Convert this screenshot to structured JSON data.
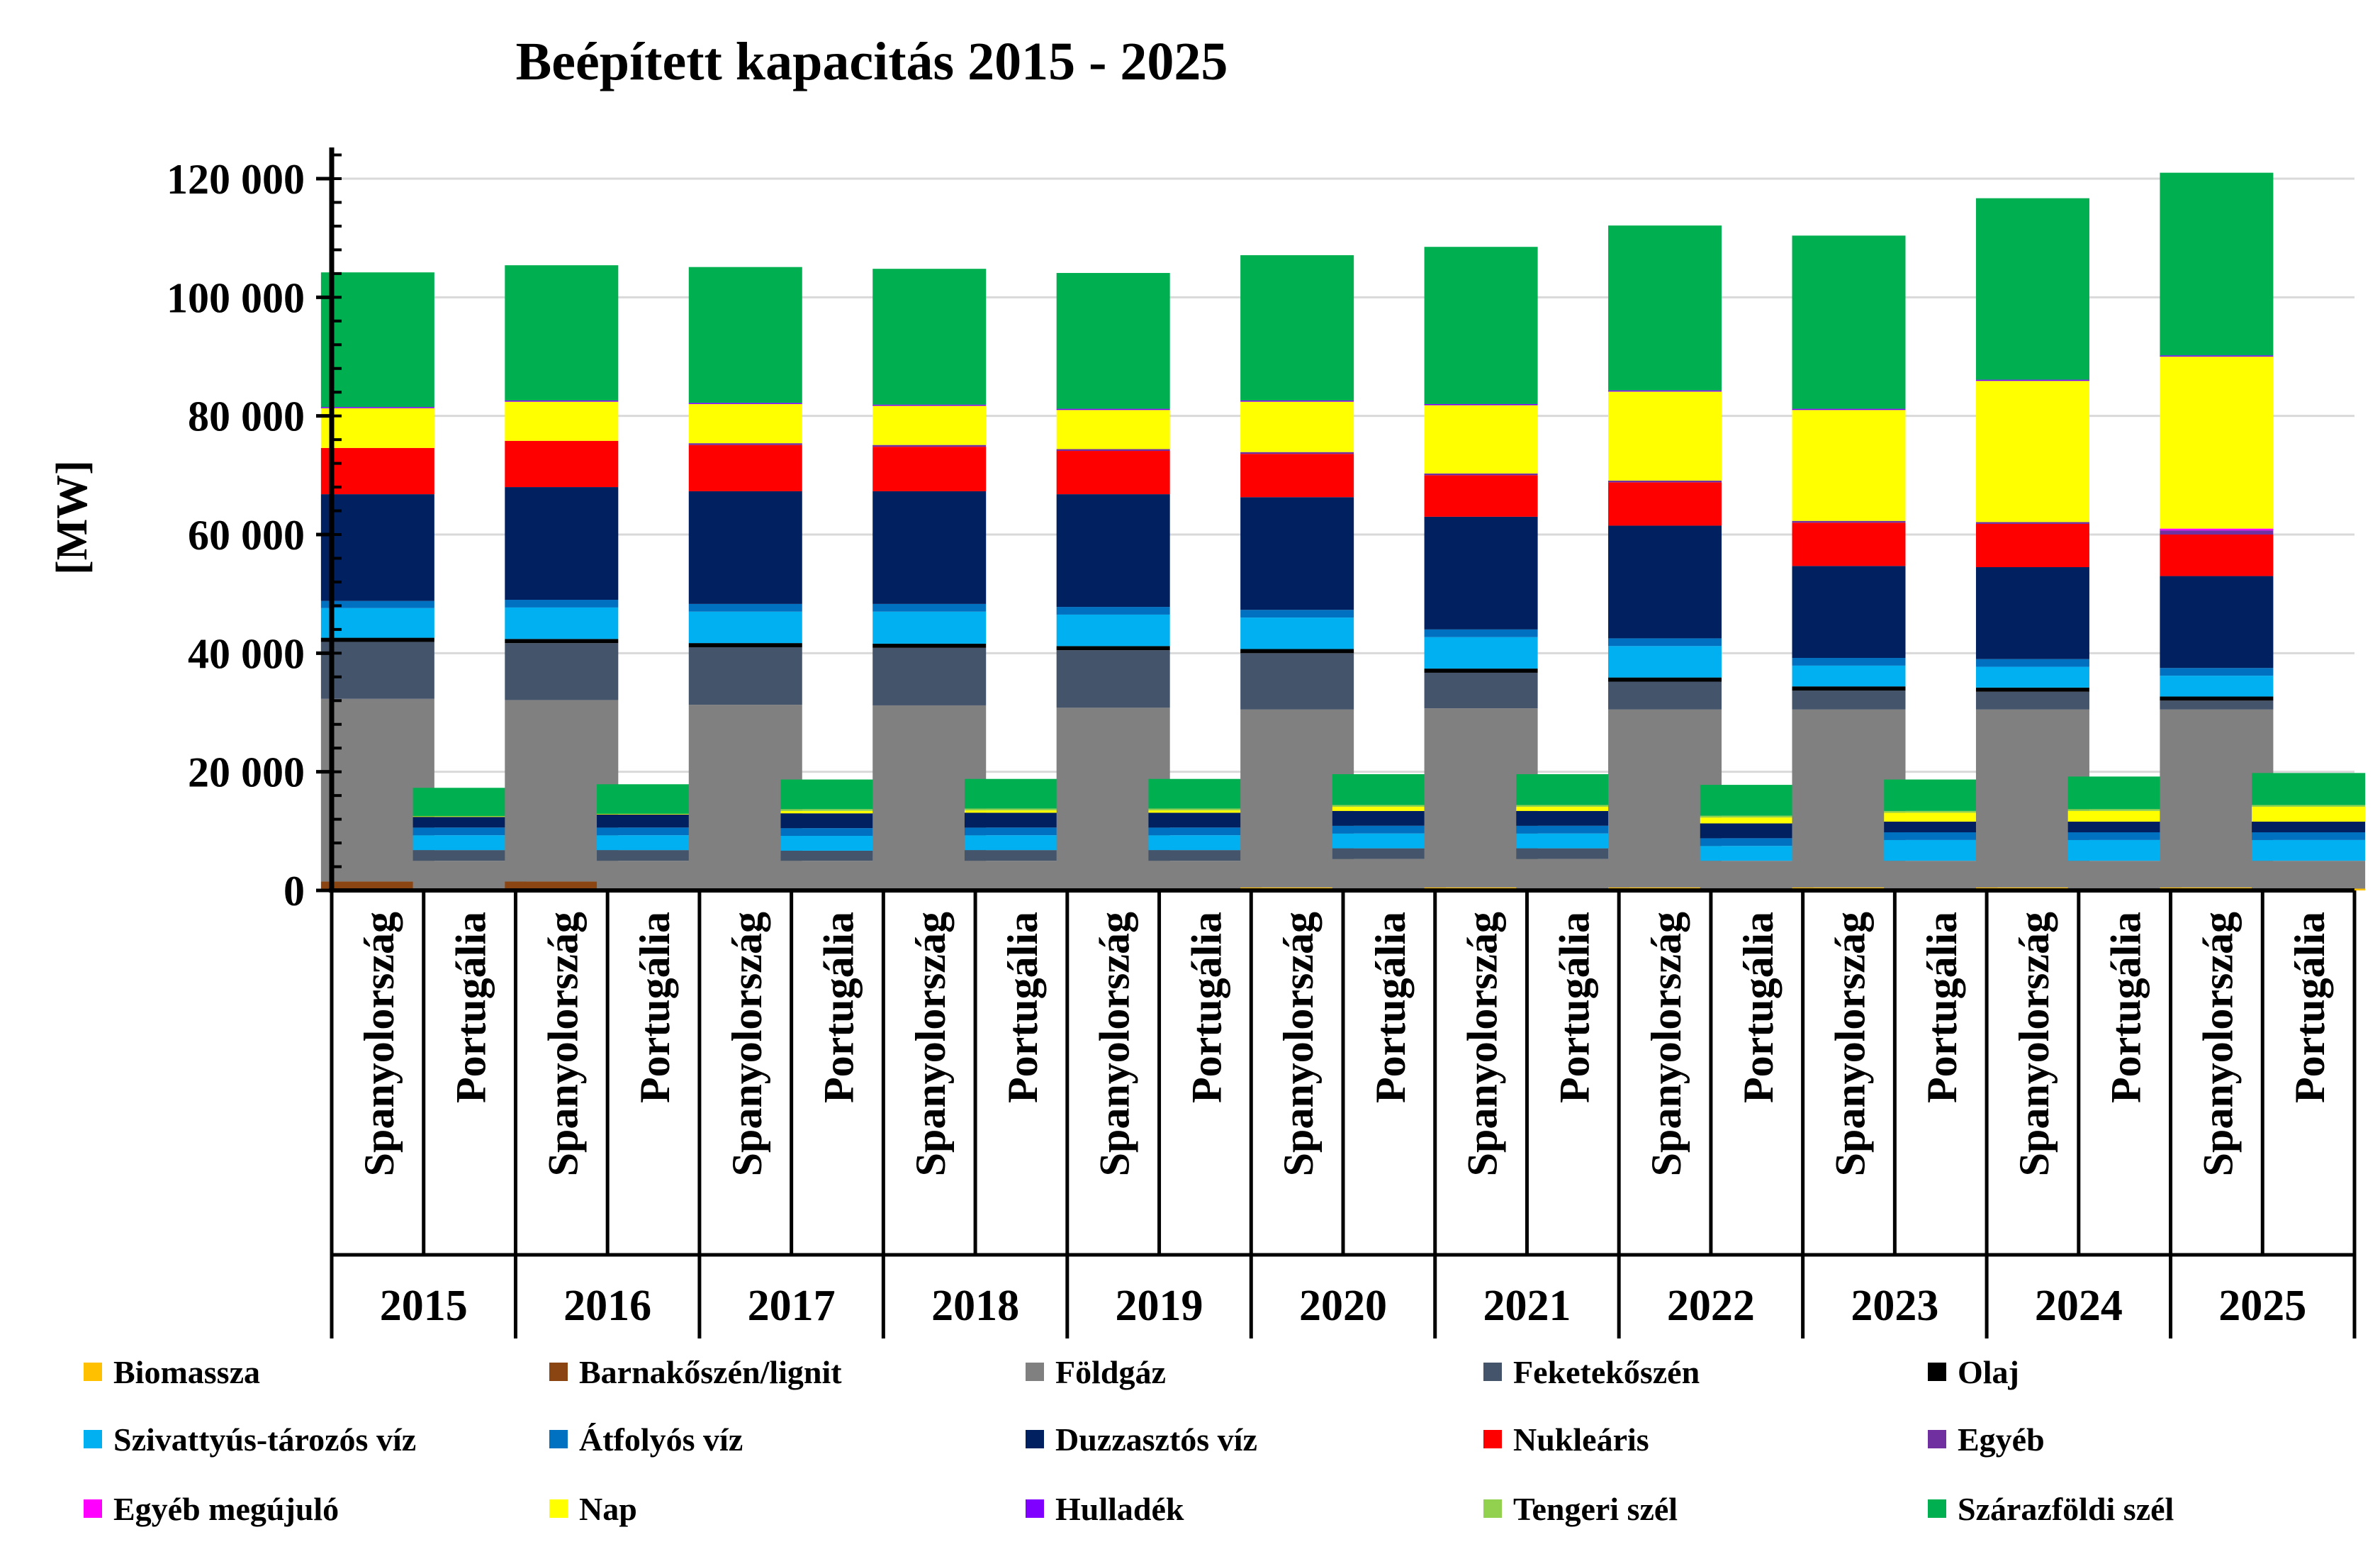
{
  "chart_data": {
    "type": "stacked-bar",
    "title": "Beépített kapacitás 2015 - 2025",
    "ylabel": "[MW]",
    "ylim": [
      0,
      120000
    ],
    "yticks": [
      0,
      20000,
      40000,
      60000,
      80000,
      100000,
      120000
    ],
    "ytick_labels": [
      "0",
      "20 000",
      "40 000",
      "60 000",
      "80 000",
      "100 000",
      "120 000"
    ],
    "grid": true,
    "legend_position": "bottom",
    "years": [
      "2015",
      "2016",
      "2017",
      "2018",
      "2019",
      "2020",
      "2021",
      "2022",
      "2023",
      "2024",
      "2025"
    ],
    "countries": [
      "Spanyolország",
      "Portugália"
    ],
    "series": [
      {
        "name": "Biomassza",
        "color": "#FFC000",
        "values": [
          [
            0,
            0
          ],
          [
            0,
            0
          ],
          [
            0,
            0
          ],
          [
            0,
            0
          ],
          [
            0,
            0
          ],
          [
            500,
            300
          ],
          [
            500,
            300
          ],
          [
            500,
            300
          ],
          [
            500,
            300
          ],
          [
            500,
            300
          ],
          [
            500,
            300
          ]
        ]
      },
      {
        "name": "Barnakőszén/lignit",
        "color": "#8B4513",
        "values": [
          [
            1500,
            0
          ],
          [
            1500,
            0
          ],
          [
            0,
            0
          ],
          [
            0,
            0
          ],
          [
            0,
            0
          ],
          [
            0,
            0
          ],
          [
            0,
            0
          ],
          [
            0,
            0
          ],
          [
            0,
            0
          ],
          [
            0,
            0
          ],
          [
            0,
            0
          ]
        ]
      },
      {
        "name": "Földgáz",
        "color": "#808080",
        "values": [
          [
            30800,
            5000
          ],
          [
            30600,
            5000
          ],
          [
            31300,
            5000
          ],
          [
            31200,
            5000
          ],
          [
            30800,
            5000
          ],
          [
            30000,
            5000
          ],
          [
            30200,
            5000
          ],
          [
            30000,
            4700
          ],
          [
            30000,
            4700
          ],
          [
            30000,
            4700
          ],
          [
            30000,
            4700
          ]
        ]
      },
      {
        "name": "Feketekőszén",
        "color": "#44546A",
        "values": [
          [
            9600,
            1800
          ],
          [
            9600,
            1800
          ],
          [
            9700,
            1700
          ],
          [
            9700,
            1800
          ],
          [
            9700,
            1800
          ],
          [
            9500,
            1800
          ],
          [
            6000,
            1800
          ],
          [
            4700,
            0
          ],
          [
            3200,
            0
          ],
          [
            3000,
            0
          ],
          [
            1500,
            0
          ]
        ]
      },
      {
        "name": "Olaj",
        "color": "#000000",
        "values": [
          [
            700,
            0
          ],
          [
            700,
            0
          ],
          [
            700,
            0
          ],
          [
            700,
            0
          ],
          [
            700,
            0
          ],
          [
            700,
            0
          ],
          [
            700,
            0
          ],
          [
            700,
            0
          ],
          [
            700,
            0
          ],
          [
            700,
            0
          ],
          [
            700,
            0
          ]
        ]
      },
      {
        "name": "Szivattyús-tározós víz",
        "color": "#00B0F0",
        "values": [
          [
            5000,
            2500
          ],
          [
            5300,
            2500
          ],
          [
            5300,
            2500
          ],
          [
            5400,
            2500
          ],
          [
            5300,
            2500
          ],
          [
            5300,
            2500
          ],
          [
            5300,
            2500
          ],
          [
            5300,
            2500
          ],
          [
            3500,
            3500
          ],
          [
            3500,
            3500
          ],
          [
            3500,
            3500
          ]
        ]
      },
      {
        "name": "Átfolyós víz",
        "color": "#0070C0",
        "values": [
          [
            1200,
            1300
          ],
          [
            1300,
            1300
          ],
          [
            1300,
            1300
          ],
          [
            1300,
            1300
          ],
          [
            1300,
            1300
          ],
          [
            1300,
            1300
          ],
          [
            1300,
            1300
          ],
          [
            1300,
            1300
          ],
          [
            1300,
            1300
          ],
          [
            1300,
            1300
          ],
          [
            1300,
            1300
          ]
        ]
      },
      {
        "name": "Duzzasztós víz",
        "color": "#002060",
        "values": [
          [
            18000,
            1800
          ],
          [
            19000,
            2200
          ],
          [
            19000,
            2500
          ],
          [
            19000,
            2500
          ],
          [
            19000,
            2500
          ],
          [
            19000,
            2500
          ],
          [
            19000,
            2500
          ],
          [
            19000,
            2500
          ],
          [
            15500,
            1800
          ],
          [
            15500,
            1800
          ],
          [
            15500,
            1800
          ]
        ]
      },
      {
        "name": "Nukleáris",
        "color": "#FF0000",
        "values": [
          [
            7800,
            0
          ],
          [
            7800,
            0
          ],
          [
            7800,
            0
          ],
          [
            7500,
            0
          ],
          [
            7300,
            0
          ],
          [
            7300,
            0
          ],
          [
            7000,
            0
          ],
          [
            7300,
            0
          ],
          [
            7300,
            0
          ],
          [
            7300,
            0
          ],
          [
            7000,
            0
          ]
        ]
      },
      {
        "name": "Egyéb",
        "color": "#7030A0",
        "values": [
          [
            0,
            0
          ],
          [
            0,
            0
          ],
          [
            300,
            0
          ],
          [
            300,
            0
          ],
          [
            300,
            0
          ],
          [
            300,
            0
          ],
          [
            300,
            0
          ],
          [
            300,
            0
          ],
          [
            300,
            0
          ],
          [
            300,
            0
          ],
          [
            700,
            0
          ]
        ]
      },
      {
        "name": "Egyéb megújuló",
        "color": "#FF00FF",
        "values": [
          [
            0,
            0
          ],
          [
            0,
            0
          ],
          [
            0,
            0
          ],
          [
            0,
            0
          ],
          [
            0,
            0
          ],
          [
            0,
            0
          ],
          [
            0,
            0
          ],
          [
            0,
            0
          ],
          [
            0,
            0
          ],
          [
            0,
            0
          ],
          [
            300,
            0
          ]
        ]
      },
      {
        "name": "Nap",
        "color": "#FFFF00",
        "values": [
          [
            6700,
            100
          ],
          [
            6600,
            100
          ],
          [
            6600,
            400
          ],
          [
            6600,
            400
          ],
          [
            6600,
            400
          ],
          [
            8500,
            700
          ],
          [
            11500,
            700
          ],
          [
            15000,
            1000
          ],
          [
            18700,
            1500
          ],
          [
            23800,
            1800
          ],
          [
            29000,
            2500
          ]
        ]
      },
      {
        "name": "Hulladék",
        "color": "#7F00FF",
        "values": [
          [
            200,
            0
          ],
          [
            200,
            0
          ],
          [
            200,
            0
          ],
          [
            200,
            0
          ],
          [
            200,
            0
          ],
          [
            200,
            0
          ],
          [
            200,
            0
          ],
          [
            200,
            0
          ],
          [
            200,
            0
          ],
          [
            200,
            0
          ],
          [
            200,
            0
          ]
        ]
      },
      {
        "name": "Tengeri szél",
        "color": "#92D050",
        "values": [
          [
            0,
            0
          ],
          [
            0,
            0
          ],
          [
            0,
            300
          ],
          [
            0,
            300
          ],
          [
            0,
            300
          ],
          [
            0,
            300
          ],
          [
            0,
            300
          ],
          [
            0,
            300
          ],
          [
            0,
            300
          ],
          [
            0,
            300
          ],
          [
            0,
            300
          ]
        ]
      },
      {
        "name": "Szárazföldi szél",
        "color": "#00B050",
        "values": [
          [
            22700,
            4800
          ],
          [
            22800,
            5000
          ],
          [
            22900,
            5000
          ],
          [
            22900,
            5000
          ],
          [
            22900,
            5000
          ],
          [
            24500,
            5200
          ],
          [
            26500,
            5200
          ],
          [
            27800,
            5200
          ],
          [
            29200,
            5300
          ],
          [
            30600,
            5500
          ],
          [
            30800,
            5400
          ]
        ]
      }
    ]
  }
}
